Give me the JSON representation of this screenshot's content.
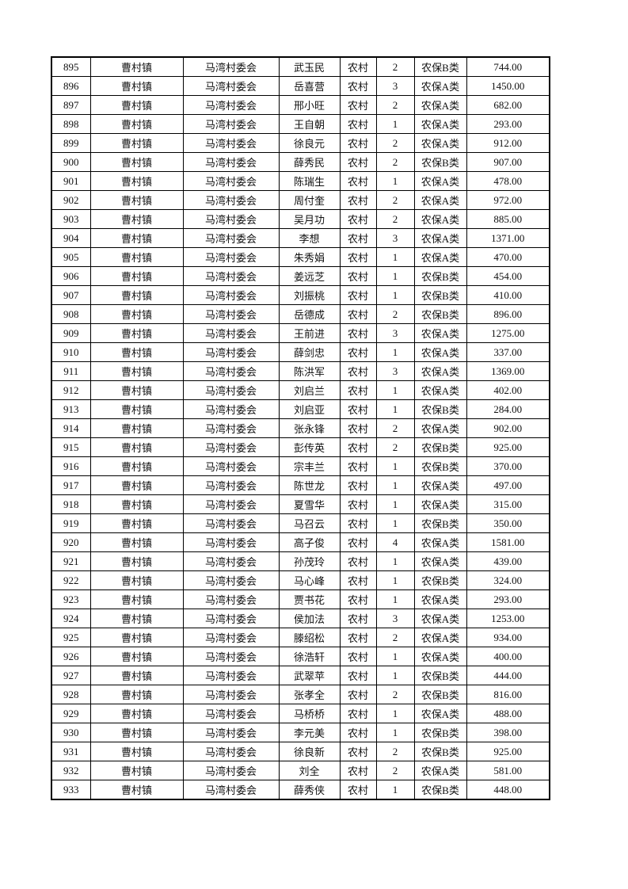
{
  "page": {
    "background_color": "#ffffff",
    "border_color": "#000000",
    "text_color": "#111111"
  },
  "table": {
    "column_keys": [
      "num",
      "town",
      "village",
      "name",
      "type",
      "count",
      "category",
      "amount"
    ],
    "rows": [
      [
        "895",
        "曹村镇",
        "马湾村委会",
        "武玉民",
        "农村",
        "2",
        "农保B类",
        "744.00"
      ],
      [
        "896",
        "曹村镇",
        "马湾村委会",
        "岳喜营",
        "农村",
        "3",
        "农保A类",
        "1450.00"
      ],
      [
        "897",
        "曹村镇",
        "马湾村委会",
        "邢小旺",
        "农村",
        "2",
        "农保A类",
        "682.00"
      ],
      [
        "898",
        "曹村镇",
        "马湾村委会",
        "王自朝",
        "农村",
        "1",
        "农保A类",
        "293.00"
      ],
      [
        "899",
        "曹村镇",
        "马湾村委会",
        "徐良元",
        "农村",
        "2",
        "农保A类",
        "912.00"
      ],
      [
        "900",
        "曹村镇",
        "马湾村委会",
        "薛秀民",
        "农村",
        "2",
        "农保B类",
        "907.00"
      ],
      [
        "901",
        "曹村镇",
        "马湾村委会",
        "陈瑞生",
        "农村",
        "1",
        "农保A类",
        "478.00"
      ],
      [
        "902",
        "曹村镇",
        "马湾村委会",
        "周付奎",
        "农村",
        "2",
        "农保A类",
        "972.00"
      ],
      [
        "903",
        "曹村镇",
        "马湾村委会",
        "吴月功",
        "农村",
        "2",
        "农保A类",
        "885.00"
      ],
      [
        "904",
        "曹村镇",
        "马湾村委会",
        "李想",
        "农村",
        "3",
        "农保A类",
        "1371.00"
      ],
      [
        "905",
        "曹村镇",
        "马湾村委会",
        "朱秀娟",
        "农村",
        "1",
        "农保A类",
        "470.00"
      ],
      [
        "906",
        "曹村镇",
        "马湾村委会",
        "姜远芝",
        "农村",
        "1",
        "农保B类",
        "454.00"
      ],
      [
        "907",
        "曹村镇",
        "马湾村委会",
        "刘振桃",
        "农村",
        "1",
        "农保B类",
        "410.00"
      ],
      [
        "908",
        "曹村镇",
        "马湾村委会",
        "岳德成",
        "农村",
        "2",
        "农保B类",
        "896.00"
      ],
      [
        "909",
        "曹村镇",
        "马湾村委会",
        "王前进",
        "农村",
        "3",
        "农保A类",
        "1275.00"
      ],
      [
        "910",
        "曹村镇",
        "马湾村委会",
        "薛剑忠",
        "农村",
        "1",
        "农保A类",
        "337.00"
      ],
      [
        "911",
        "曹村镇",
        "马湾村委会",
        "陈洪军",
        "农村",
        "3",
        "农保A类",
        "1369.00"
      ],
      [
        "912",
        "曹村镇",
        "马湾村委会",
        "刘启兰",
        "农村",
        "1",
        "农保A类",
        "402.00"
      ],
      [
        "913",
        "曹村镇",
        "马湾村委会",
        "刘启亚",
        "农村",
        "1",
        "农保B类",
        "284.00"
      ],
      [
        "914",
        "曹村镇",
        "马湾村委会",
        "张永锋",
        "农村",
        "2",
        "农保A类",
        "902.00"
      ],
      [
        "915",
        "曹村镇",
        "马湾村委会",
        "彭传英",
        "农村",
        "2",
        "农保B类",
        "925.00"
      ],
      [
        "916",
        "曹村镇",
        "马湾村委会",
        "宗丰兰",
        "农村",
        "1",
        "农保B类",
        "370.00"
      ],
      [
        "917",
        "曹村镇",
        "马湾村委会",
        "陈世龙",
        "农村",
        "1",
        "农保A类",
        "497.00"
      ],
      [
        "918",
        "曹村镇",
        "马湾村委会",
        "夏雪华",
        "农村",
        "1",
        "农保A类",
        "315.00"
      ],
      [
        "919",
        "曹村镇",
        "马湾村委会",
        "马召云",
        "农村",
        "1",
        "农保B类",
        "350.00"
      ],
      [
        "920",
        "曹村镇",
        "马湾村委会",
        "高子俊",
        "农村",
        "4",
        "农保A类",
        "1581.00"
      ],
      [
        "921",
        "曹村镇",
        "马湾村委会",
        "孙茂玲",
        "农村",
        "1",
        "农保A类",
        "439.00"
      ],
      [
        "922",
        "曹村镇",
        "马湾村委会",
        "马心峰",
        "农村",
        "1",
        "农保B类",
        "324.00"
      ],
      [
        "923",
        "曹村镇",
        "马湾村委会",
        "贾书花",
        "农村",
        "1",
        "农保A类",
        "293.00"
      ],
      [
        "924",
        "曹村镇",
        "马湾村委会",
        "侯加法",
        "农村",
        "3",
        "农保A类",
        "1253.00"
      ],
      [
        "925",
        "曹村镇",
        "马湾村委会",
        "滕绍松",
        "农村",
        "2",
        "农保A类",
        "934.00"
      ],
      [
        "926",
        "曹村镇",
        "马湾村委会",
        "徐浩轩",
        "农村",
        "1",
        "农保A类",
        "400.00"
      ],
      [
        "927",
        "曹村镇",
        "马湾村委会",
        "武翠苹",
        "农村",
        "1",
        "农保B类",
        "444.00"
      ],
      [
        "928",
        "曹村镇",
        "马湾村委会",
        "张孝全",
        "农村",
        "2",
        "农保B类",
        "816.00"
      ],
      [
        "929",
        "曹村镇",
        "马湾村委会",
        "马桥桥",
        "农村",
        "1",
        "农保A类",
        "488.00"
      ],
      [
        "930",
        "曹村镇",
        "马湾村委会",
        "李元美",
        "农村",
        "1",
        "农保B类",
        "398.00"
      ],
      [
        "931",
        "曹村镇",
        "马湾村委会",
        "徐良新",
        "农村",
        "2",
        "农保B类",
        "925.00"
      ],
      [
        "932",
        "曹村镇",
        "马湾村委会",
        "刘全",
        "农村",
        "2",
        "农保A类",
        "581.00"
      ],
      [
        "933",
        "曹村镇",
        "马湾村委会",
        "薛秀侠",
        "农村",
        "1",
        "农保B类",
        "448.00"
      ]
    ]
  }
}
